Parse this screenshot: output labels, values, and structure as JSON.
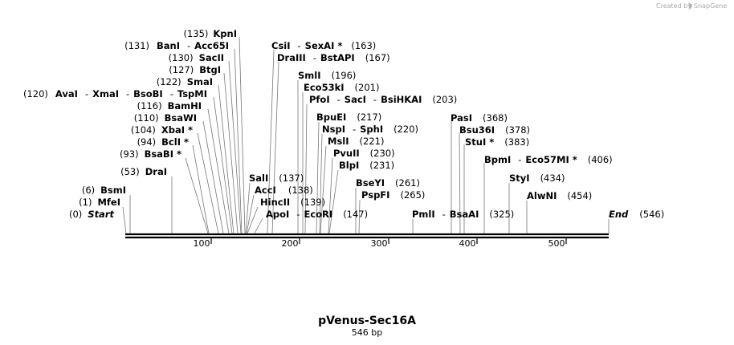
{
  "credit": {
    "created_by": "Created by",
    "brand": "SnapGene"
  },
  "plasmid": {
    "name": "pVenus-Sec16A",
    "length": "546 bp"
  },
  "axis": {
    "ticks": [
      "100",
      "200",
      "300",
      "400",
      "500"
    ]
  },
  "labels": [
    {
      "pos": "(135)",
      "parts": [
        "KpnI"
      ]
    },
    {
      "pos": "(131)",
      "parts": [
        "BanI",
        "Acc65I"
      ]
    },
    {
      "pos": "(130)",
      "parts": [
        "SacII"
      ]
    },
    {
      "pos": "(127)",
      "parts": [
        "BtgI"
      ]
    },
    {
      "pos": "(122)",
      "parts": [
        "SmaI"
      ]
    },
    {
      "pos": "(120)",
      "parts": [
        "AvaI",
        "XmaI",
        "BsoBI",
        "TspMI"
      ]
    },
    {
      "pos": "(116)",
      "parts": [
        "BamHI"
      ]
    },
    {
      "pos": "(110)",
      "parts": [
        "BsaWI"
      ]
    },
    {
      "pos": "(104)",
      "parts": [
        "XbaI *"
      ]
    },
    {
      "pos": "(94)",
      "parts": [
        "BclI *"
      ]
    },
    {
      "pos": "(93)",
      "parts": [
        "BsaBI *"
      ]
    },
    {
      "pos": "(53)",
      "parts": [
        "DraI"
      ]
    },
    {
      "pos": "(6)",
      "parts": [
        "BsmI"
      ]
    },
    {
      "pos": "(1)",
      "parts": [
        "MfeI"
      ]
    },
    {
      "pos": "(0)",
      "parts": [
        "Start"
      ]
    },
    {
      "pos": "(163)",
      "parts": [
        "CsiI",
        "SexAI *"
      ]
    },
    {
      "pos": "(167)",
      "parts": [
        "DraIII",
        "BstAPI"
      ]
    },
    {
      "pos": "(196)",
      "parts": [
        "SmlI"
      ]
    },
    {
      "pos": "(201)",
      "parts": [
        "Eco53kI"
      ]
    },
    {
      "pos": "(203)",
      "parts": [
        "PfoI",
        "SacI",
        "BsiHKAI"
      ]
    },
    {
      "pos": "(217)",
      "parts": [
        "BpuEI"
      ]
    },
    {
      "pos": "(220)",
      "parts": [
        "NspI",
        "SphI"
      ]
    },
    {
      "pos": "(221)",
      "parts": [
        "MslI"
      ]
    },
    {
      "pos": "(230)",
      "parts": [
        "PvuII"
      ]
    },
    {
      "pos": "(231)",
      "parts": [
        "BlpI"
      ]
    },
    {
      "pos": "(137)",
      "parts": [
        "SalI"
      ]
    },
    {
      "pos": "(138)",
      "parts": [
        "AccI"
      ]
    },
    {
      "pos": "(139)",
      "parts": [
        "HincII"
      ]
    },
    {
      "pos": "(147)",
      "parts": [
        "ApoI",
        "EcoRI"
      ]
    },
    {
      "pos": "(261)",
      "parts": [
        "BseYI"
      ]
    },
    {
      "pos": "(265)",
      "parts": [
        "PspFI"
      ]
    },
    {
      "pos": "(325)",
      "parts": [
        "PmlI",
        "BsaAI"
      ]
    },
    {
      "pos": "(368)",
      "parts": [
        "PasI"
      ]
    },
    {
      "pos": "(378)",
      "parts": [
        "Bsu36I"
      ]
    },
    {
      "pos": "(383)",
      "parts": [
        "StuI *"
      ]
    },
    {
      "pos": "(406)",
      "parts": [
        "BpmI",
        "Eco57MI *"
      ]
    },
    {
      "pos": "(434)",
      "parts": [
        "StyI"
      ]
    },
    {
      "pos": "(454)",
      "parts": [
        "AlwNI"
      ]
    },
    {
      "pos": "(546)",
      "parts": [
        "End"
      ]
    }
  ]
}
